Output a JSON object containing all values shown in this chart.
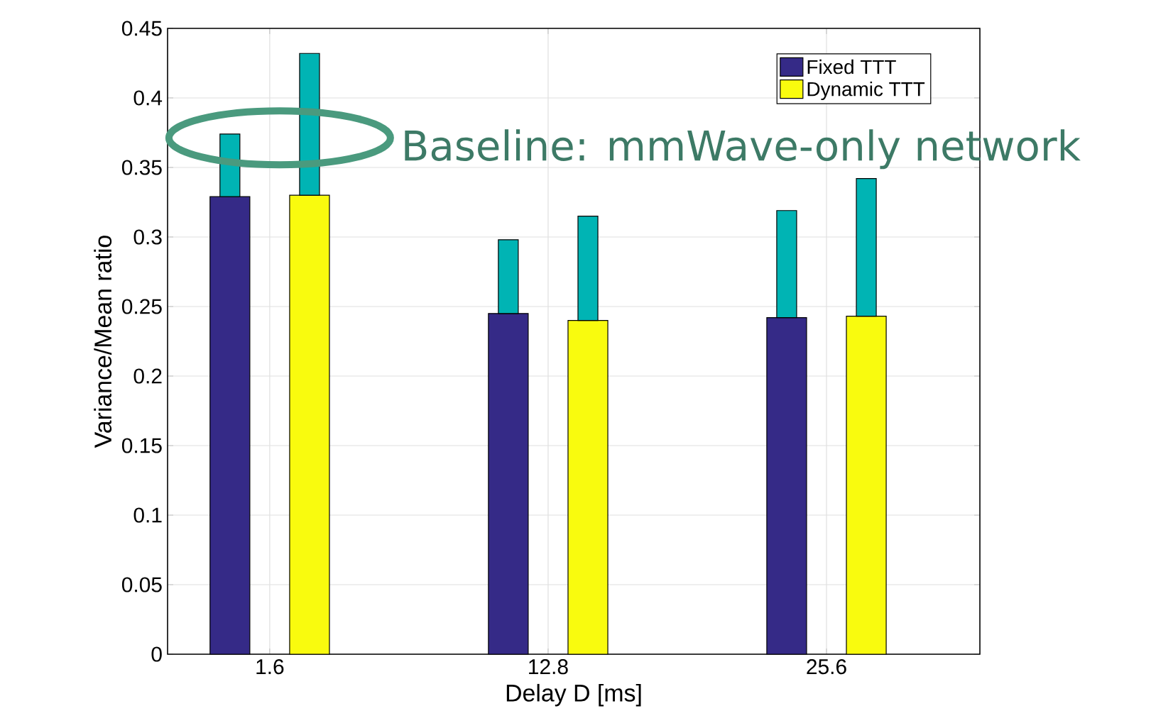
{
  "chart_data": {
    "type": "bar",
    "xlabel": "Delay D [ms]",
    "ylabel": "Variance/Mean ratio",
    "categories": [
      "1.6",
      "12.8",
      "25.6"
    ],
    "series": [
      {
        "name": "Fixed TTT",
        "color": "#352a87",
        "values": [
          0.329,
          0.245,
          0.242
        ]
      },
      {
        "name": "Dynamic TTT",
        "color": "#f9fb0e",
        "values": [
          0.33,
          0.24,
          0.243
        ]
      },
      {
        "color": "#00b4b4",
        "values": [
          0.045,
          0.053,
          0.077
        ],
        "base": [
          0.329,
          0.245,
          0.242
        ]
      },
      {
        "color": "#00b4b4",
        "values": [
          0.102,
          0.075,
          0.099
        ],
        "base": [
          0.33,
          0.24,
          0.243
        ]
      }
    ],
    "ylim": [
      0,
      0.45
    ],
    "yticks": [
      0,
      0.05,
      0.1,
      0.15,
      0.2,
      0.25,
      0.3,
      0.35,
      0.4,
      0.45
    ],
    "grid": true,
    "legend": "top right",
    "annotations": [
      "Baseline: mmWave-only network"
    ]
  }
}
